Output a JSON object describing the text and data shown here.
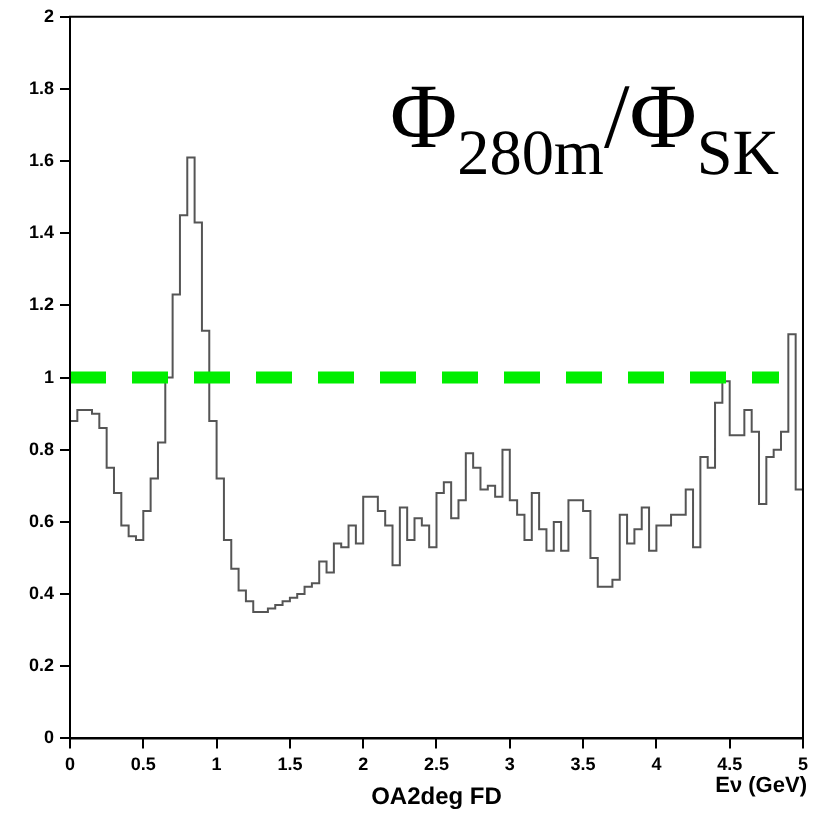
{
  "chart_data": {
    "type": "histogram",
    "title": "Φ$_{280m}$/Φ$_{SK}$",
    "xlabel": "Eν (GeV)",
    "annotations": [
      "OA2deg FD"
    ],
    "bins": [
      0,
      0.05,
      0.1,
      0.15,
      0.2,
      0.25,
      0.3,
      0.35,
      0.4,
      0.45,
      0.5,
      0.55,
      0.6,
      0.65,
      0.7,
      0.75,
      0.8,
      0.85,
      0.9,
      0.95,
      1,
      1.05,
      1.1,
      1.15,
      1.2,
      1.25,
      1.3,
      1.35,
      1.4,
      1.45,
      1.5,
      1.55,
      1.6,
      1.65,
      1.7,
      1.75,
      1.8,
      1.85,
      1.9,
      1.95,
      2,
      2.05,
      2.1,
      2.15,
      2.2,
      2.25,
      2.3,
      2.35,
      2.4,
      2.45,
      2.5,
      2.55,
      2.6,
      2.65,
      2.7,
      2.75,
      2.8,
      2.85,
      2.9,
      2.95,
      3,
      3.05,
      3.1,
      3.15,
      3.2,
      3.25,
      3.3,
      3.35,
      3.4,
      3.45,
      3.5,
      3.55,
      3.6,
      3.65,
      3.7,
      3.75,
      3.8,
      3.85,
      3.9,
      3.95,
      4,
      4.05,
      4.1,
      4.15,
      4.2,
      4.25,
      4.3,
      4.35,
      4.4,
      4.45,
      4.5,
      4.55,
      4.6,
      4.65,
      4.7,
      4.75,
      4.8,
      4.85,
      4.9,
      4.95,
      5
    ],
    "values": [
      0.88,
      0.91,
      0.91,
      0.9,
      0.86,
      0.75,
      0.68,
      0.59,
      0.56,
      0.55,
      0.63,
      0.72,
      0.82,
      1.0,
      1.23,
      1.45,
      1.61,
      1.43,
      1.13,
      0.88,
      0.72,
      0.55,
      0.47,
      0.41,
      0.38,
      0.35,
      0.35,
      0.36,
      0.37,
      0.38,
      0.39,
      0.4,
      0.42,
      0.43,
      0.49,
      0.46,
      0.54,
      0.53,
      0.59,
      0.54,
      0.67,
      0.67,
      0.63,
      0.59,
      0.48,
      0.64,
      0.55,
      0.61,
      0.59,
      0.53,
      0.68,
      0.71,
      0.61,
      0.66,
      0.79,
      0.75,
      0.69,
      0.7,
      0.67,
      0.8,
      0.66,
      0.62,
      0.55,
      0.68,
      0.58,
      0.52,
      0.6,
      0.52,
      0.66,
      0.66,
      0.63,
      0.5,
      0.42,
      0.42,
      0.44,
      0.62,
      0.54,
      0.58,
      0.64,
      0.52,
      0.59,
      0.59,
      0.62,
      0.62,
      0.69,
      0.53,
      0.78,
      0.75,
      0.93,
      0.99,
      0.84,
      0.84,
      0.91,
      0.85,
      0.65,
      0.78,
      0.8,
      0.85,
      1.12,
      0.69
    ],
    "color": "#555555",
    "xlim": [
      0,
      5
    ],
    "xticks": [
      0,
      0.5,
      1,
      1.5,
      2,
      2.5,
      3,
      3.5,
      4,
      4.5,
      5
    ],
    "ylim": [
      0,
      2
    ],
    "yticks": [
      0,
      0.2,
      0.4,
      0.6,
      0.8,
      1,
      1.2,
      1.4,
      1.6,
      1.8,
      2
    ],
    "ref_lines": [
      {
        "axis": "y",
        "value": 1,
        "color": "#00ee00",
        "line_style": "dashed"
      }
    ],
    "grid": false,
    "legend": false
  }
}
